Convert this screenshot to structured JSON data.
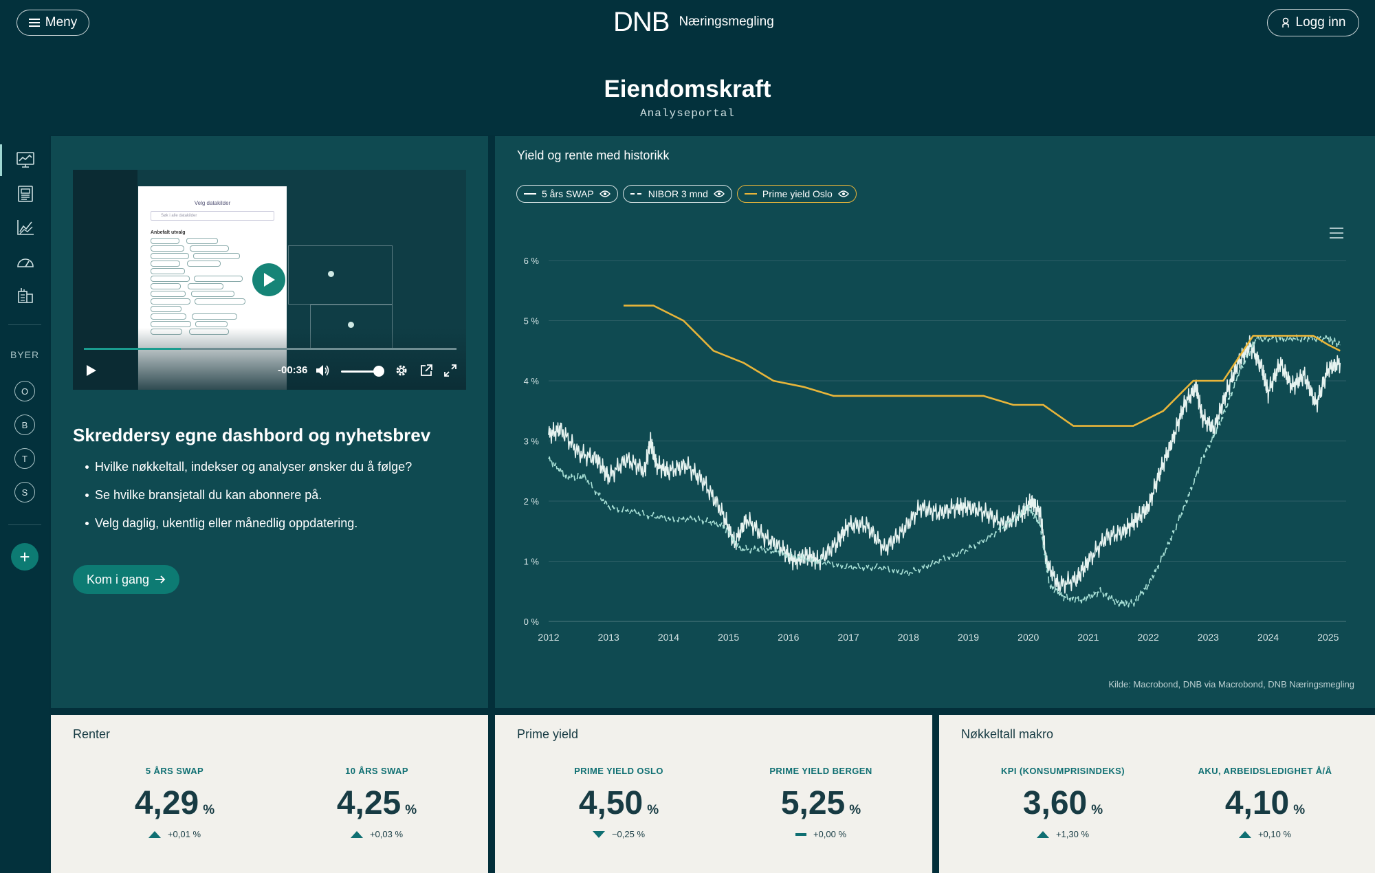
{
  "header": {
    "menu_label": "Meny",
    "logo": "DNB",
    "brand_sub": "Næringsmegling",
    "login_label": "Logg inn",
    "title": "Eiendomskraft",
    "subtitle": "Analyseportal"
  },
  "sidebar": {
    "nav_icons": [
      "dashboard-icon",
      "news-icon",
      "line-chart-icon",
      "gauge-icon",
      "buildings-icon"
    ],
    "section_label": "BYER",
    "cities": [
      "O",
      "B",
      "T",
      "S"
    ],
    "add_label": "+"
  },
  "video": {
    "doc_title": "Velg datakilder",
    "doc_search": "Søk i alle datakilder",
    "doc_section": "Anbefalt utvalg",
    "time": "-00:36",
    "progress": 0.26,
    "volume": 0.8
  },
  "promo": {
    "title": "Skreddersy egne dashbord og nyhetsbrev",
    "bullets": [
      "Hvilke nøkkeltall, indekser og analyser ønsker du å følge?",
      "Se hvilke bransjetall du kan abonnere på.",
      "Velg daglig, ukentlig eller månedlig oppdatering."
    ],
    "cta_label": "Kom i gang"
  },
  "chart_panel": {
    "title": "Yield og rente med historikk",
    "legend": [
      "5 års SWAP",
      "NIBOR 3 mnd",
      "Prime yield Oslo"
    ],
    "source": "Kilde: Macrobond, DNB via Macrobond, DNB Næringsmegling"
  },
  "colors": {
    "swap": "#e6f3f0",
    "nibor": "#a8e0d6",
    "prime_yield": "#e8b53a",
    "accent": "#0d7b73"
  },
  "chart_data": {
    "type": "line",
    "title": "Yield og rente med historikk",
    "xlim": [
      2012,
      2025.3
    ],
    "ylim": [
      0,
      6
    ],
    "x_ticks": [
      "2012",
      "2013",
      "2014",
      "2015",
      "2016",
      "2017",
      "2018",
      "2019",
      "2020",
      "2021",
      "2022",
      "2023",
      "2024",
      "2025"
    ],
    "y_ticks": [
      "0 %",
      "1 %",
      "2 %",
      "3 %",
      "4 %",
      "5 %",
      "6 %"
    ],
    "grid": true,
    "series": [
      {
        "name": "5 års SWAP",
        "style": "solid",
        "x": [
          2012.0,
          2012.2,
          2012.5,
          2012.8,
          2013.0,
          2013.3,
          2013.6,
          2013.7,
          2013.8,
          2014.0,
          2014.3,
          2014.6,
          2014.9,
          2015.1,
          2015.3,
          2015.6,
          2015.9,
          2016.1,
          2016.3,
          2016.5,
          2016.8,
          2017.0,
          2017.3,
          2017.6,
          2017.9,
          2018.2,
          2018.5,
          2018.8,
          2019.0,
          2019.3,
          2019.6,
          2019.9,
          2020.05,
          2020.2,
          2020.3,
          2020.5,
          2020.8,
          2021.0,
          2021.3,
          2021.6,
          2021.8,
          2022.0,
          2022.2,
          2022.4,
          2022.6,
          2022.8,
          2022.9,
          2023.1,
          2023.3,
          2023.5,
          2023.7,
          2023.9,
          2024.0,
          2024.2,
          2024.4,
          2024.6,
          2024.8,
          2025.0,
          2025.2
        ],
        "y": [
          3.1,
          3.2,
          2.8,
          2.7,
          2.4,
          2.7,
          2.5,
          3.0,
          2.6,
          2.5,
          2.6,
          2.3,
          1.8,
          1.3,
          1.7,
          1.4,
          1.2,
          1.0,
          1.1,
          1.0,
          1.3,
          1.6,
          1.6,
          1.2,
          1.5,
          1.9,
          1.8,
          1.9,
          1.9,
          1.8,
          1.6,
          1.8,
          2.0,
          1.8,
          1.0,
          0.6,
          0.7,
          1.0,
          1.4,
          1.5,
          1.7,
          1.9,
          2.5,
          3.0,
          3.6,
          3.9,
          3.4,
          3.2,
          3.8,
          4.3,
          4.6,
          4.2,
          3.8,
          4.3,
          3.9,
          4.1,
          3.6,
          4.2,
          4.3
        ]
      },
      {
        "name": "NIBOR 3 mnd",
        "style": "dashed",
        "x": [
          2012.0,
          2012.3,
          2012.6,
          2013.0,
          2013.5,
          2014.0,
          2014.5,
          2014.9,
          2015.2,
          2015.6,
          2016.0,
          2016.5,
          2017.0,
          2017.5,
          2018.0,
          2018.5,
          2019.0,
          2019.5,
          2020.0,
          2020.2,
          2020.35,
          2020.6,
          2020.9,
          2021.2,
          2021.5,
          2021.75,
          2022.0,
          2022.3,
          2022.6,
          2022.9,
          2023.2,
          2023.5,
          2023.8,
          2024.2,
          2024.6,
          2025.0,
          2025.2
        ],
        "y": [
          2.7,
          2.4,
          2.4,
          1.9,
          1.8,
          1.7,
          1.7,
          1.6,
          1.2,
          1.2,
          1.1,
          1.0,
          0.9,
          0.9,
          0.8,
          1.0,
          1.2,
          1.5,
          1.9,
          1.6,
          0.6,
          0.4,
          0.35,
          0.5,
          0.3,
          0.3,
          0.6,
          1.2,
          1.9,
          2.7,
          3.3,
          4.1,
          4.7,
          4.7,
          4.7,
          4.7,
          4.6
        ]
      },
      {
        "name": "Prime yield Oslo",
        "style": "solid",
        "x": [
          2013.25,
          2013.75,
          2014.25,
          2014.75,
          2015.25,
          2015.75,
          2016.25,
          2016.75,
          2017.0,
          2019.25,
          2019.75,
          2020.25,
          2020.75,
          2021.0,
          2021.75,
          2022.25,
          2022.75,
          2023.25,
          2023.75,
          2024.0,
          2024.75,
          2025.0,
          2025.2
        ],
        "y": [
          5.25,
          5.25,
          5.0,
          4.5,
          4.3,
          4.0,
          3.9,
          3.75,
          3.75,
          3.75,
          3.6,
          3.6,
          3.25,
          3.25,
          3.25,
          3.5,
          4.0,
          4.0,
          4.75,
          4.75,
          4.75,
          4.6,
          4.5
        ]
      }
    ]
  },
  "cards": [
    {
      "title": "Renter",
      "kpis": [
        {
          "label": "5 ÅRS SWAP",
          "value": "4,29",
          "unit": "%",
          "change": "+0,01 %",
          "trend": "up"
        },
        {
          "label": "10 ÅRS SWAP",
          "value": "4,25",
          "unit": "%",
          "change": "+0,03 %",
          "trend": "up"
        }
      ]
    },
    {
      "title": "Prime yield",
      "kpis": [
        {
          "label": "PRIME YIELD OSLO",
          "value": "4,50",
          "unit": "%",
          "change": "−0,25 %",
          "trend": "down"
        },
        {
          "label": "PRIME YIELD BERGEN",
          "value": "5,25",
          "unit": "%",
          "change": "+0,00 %",
          "trend": "flat"
        }
      ]
    },
    {
      "title": "Nøkkeltall makro",
      "kpis": [
        {
          "label": "KPI (KONSUMPRISINDEKS)",
          "value": "3,60",
          "unit": "%",
          "change": "+1,30 %",
          "trend": "up"
        },
        {
          "label": "AKU, ARBEIDSLEDIGHET Å/Å",
          "value": "4,10",
          "unit": "%",
          "change": "+0,10 %",
          "trend": "up"
        }
      ]
    }
  ]
}
